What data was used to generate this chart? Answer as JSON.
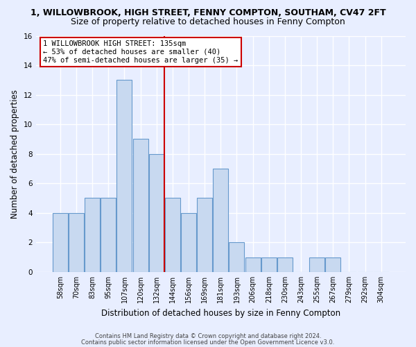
{
  "title_line1": "1, WILLOWBROOK, HIGH STREET, FENNY COMPTON, SOUTHAM, CV47 2FT",
  "title_line2": "Size of property relative to detached houses in Fenny Compton",
  "xlabel": "Distribution of detached houses by size in Fenny Compton",
  "ylabel": "Number of detached properties",
  "bar_labels": [
    "58sqm",
    "70sqm",
    "83sqm",
    "95sqm",
    "107sqm",
    "120sqm",
    "132sqm",
    "144sqm",
    "156sqm",
    "169sqm",
    "181sqm",
    "193sqm",
    "206sqm",
    "218sqm",
    "230sqm",
    "243sqm",
    "255sqm",
    "267sqm",
    "279sqm",
    "292sqm",
    "304sqm"
  ],
  "bar_values": [
    4,
    4,
    5,
    5,
    13,
    9,
    8,
    5,
    4,
    5,
    7,
    2,
    1,
    1,
    1,
    0,
    1,
    1,
    0,
    0,
    0
  ],
  "bar_color": "#c8d9f0",
  "bar_edge_color": "#6699cc",
  "vline_x": 6.5,
  "vline_color": "#cc0000",
  "annotation_text": "1 WILLOWBROOK HIGH STREET: 135sqm\n← 53% of detached houses are smaller (40)\n47% of semi-detached houses are larger (35) →",
  "annotation_box_color": "#ffffff",
  "annotation_box_edge": "#cc0000",
  "ylim": [
    0,
    16
  ],
  "yticks": [
    0,
    2,
    4,
    6,
    8,
    10,
    12,
    14,
    16
  ],
  "footer_line1": "Contains HM Land Registry data © Crown copyright and database right 2024.",
  "footer_line2": "Contains public sector information licensed under the Open Government Licence v3.0.",
  "bg_color": "#e8eeff",
  "plot_bg_color": "#e8eeff",
  "grid_color": "#ffffff",
  "title_fontsize": 9,
  "subtitle_fontsize": 9,
  "axis_label_fontsize": 8.5,
  "tick_fontsize": 7
}
